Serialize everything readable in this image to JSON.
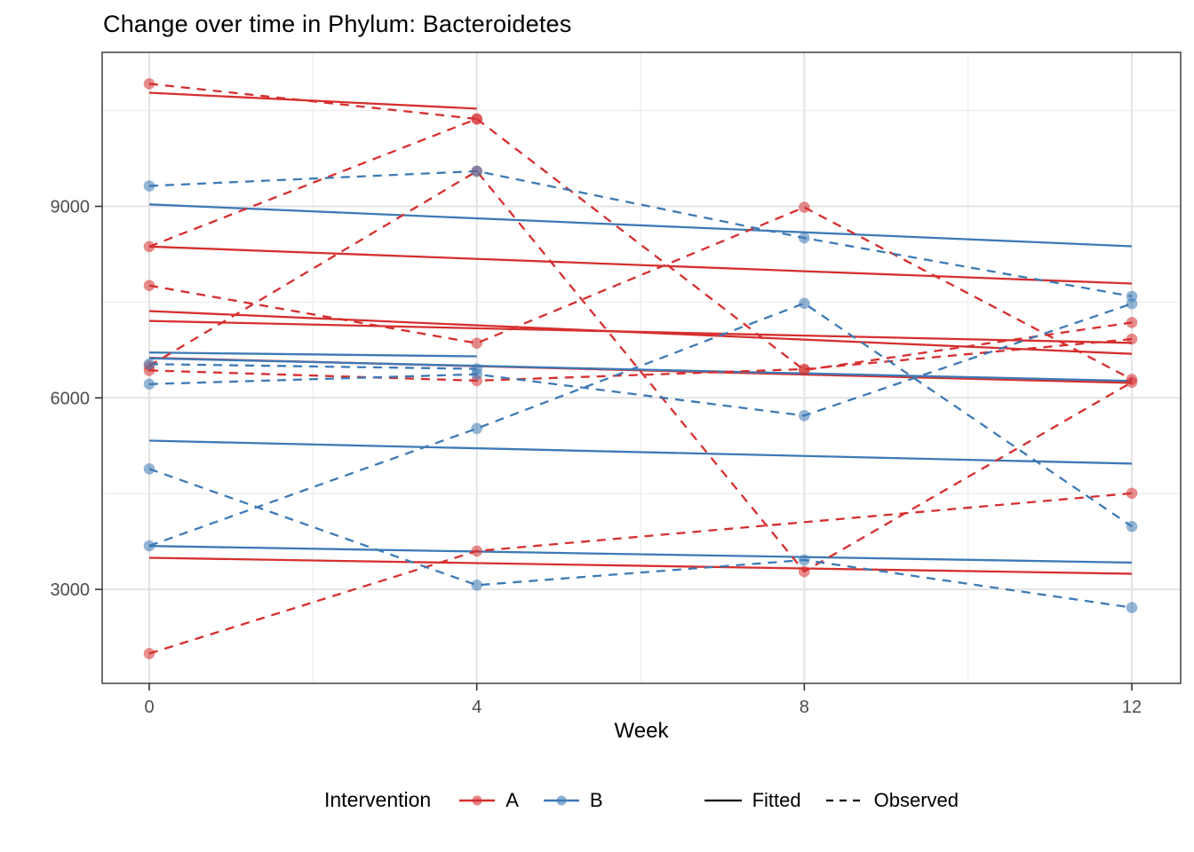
{
  "title": "Change over time in Phylum: Bacteroidetes",
  "axes": {
    "x": {
      "label": "Week",
      "ticks": [
        0,
        4,
        8,
        12
      ],
      "minor": [
        2,
        6,
        10
      ],
      "range": [
        0,
        12
      ]
    },
    "y": {
      "ticks": [
        3000,
        6000,
        9000
      ],
      "minor": [
        4500,
        7500,
        10500
      ],
      "range": [
        1520,
        11410
      ]
    }
  },
  "legend": {
    "title": "Intervention",
    "groups": [
      {
        "label": "A",
        "color": "#d62f2f"
      },
      {
        "label": "B",
        "color": "#3d7ab5"
      }
    ],
    "linetypes": [
      {
        "label": "Fitted",
        "style": "solid"
      },
      {
        "label": "Observed",
        "style": "dashed"
      }
    ]
  },
  "chart_data": {
    "type": "line",
    "title": "Change over time in Phylum: Bacteroidetes",
    "xlabel": "Week",
    "ylabel": "",
    "x_weeks": [
      0,
      4,
      8,
      12
    ],
    "ylim": [
      1520,
      11410
    ],
    "grid": "on",
    "legend_position": "bottom",
    "colors": {
      "A": "#d62f2f",
      "B": "#3d7ab5"
    },
    "series": [
      {
        "id": "A1",
        "group": "A",
        "kind": "fitted",
        "x": [
          0,
          4
        ],
        "y": [
          10780,
          10530
        ]
      },
      {
        "id": "A2",
        "group": "A",
        "kind": "fitted",
        "x": [
          0,
          12
        ],
        "y": [
          8370,
          7790
        ]
      },
      {
        "id": "A3",
        "group": "A",
        "kind": "fitted",
        "x": [
          0,
          12
        ],
        "y": [
          7360,
          6690
        ]
      },
      {
        "id": "A4",
        "group": "A",
        "kind": "fitted",
        "x": [
          0,
          12
        ],
        "y": [
          7205,
          6860
        ]
      },
      {
        "id": "A5",
        "group": "A",
        "kind": "fitted",
        "x": [
          0,
          12
        ],
        "y": [
          6628,
          6235
        ]
      },
      {
        "id": "A6",
        "group": "A",
        "kind": "fitted",
        "x": [
          0,
          12
        ],
        "y": [
          3495,
          3245
        ]
      },
      {
        "id": "B1",
        "group": "B",
        "kind": "fitted",
        "x": [
          0,
          12
        ],
        "y": [
          9030,
          8375
        ]
      },
      {
        "id": "B2",
        "group": "B",
        "kind": "fitted",
        "x": [
          0,
          4
        ],
        "y": [
          6710,
          6650
        ]
      },
      {
        "id": "B3",
        "group": "B",
        "kind": "fitted",
        "x": [
          0,
          12
        ],
        "y": [
          6620,
          6265
        ]
      },
      {
        "id": "B4",
        "group": "B",
        "kind": "fitted",
        "x": [
          0,
          12
        ],
        "y": [
          3680,
          3420
        ]
      },
      {
        "id": "B5",
        "group": "B",
        "kind": "fitted",
        "x": [
          0,
          12
        ],
        "y": [
          5330,
          4970
        ]
      },
      {
        "id": "A1",
        "group": "A",
        "kind": "observed",
        "x": [
          0,
          4
        ],
        "y": [
          10920,
          10370
        ]
      },
      {
        "id": "A2",
        "group": "A",
        "kind": "observed",
        "x": [
          0,
          4,
          8,
          12
        ],
        "y": [
          8370,
          10370,
          6435,
          7180
        ]
      },
      {
        "id": "A3",
        "group": "A",
        "kind": "observed",
        "x": [
          0,
          4,
          8,
          12
        ],
        "y": [
          7760,
          6857,
          8985,
          6290
        ]
      },
      {
        "id": "A4",
        "group": "A",
        "kind": "observed",
        "x": [
          0,
          4,
          8,
          12
        ],
        "y": [
          6500,
          9550,
          3280,
          6245
        ]
      },
      {
        "id": "A5",
        "group": "A",
        "kind": "observed",
        "x": [
          0,
          4,
          8,
          12
        ],
        "y": [
          6430,
          6270,
          6450,
          6920
        ]
      },
      {
        "id": "A6",
        "group": "A",
        "kind": "observed",
        "x": [
          0,
          4,
          12
        ],
        "y": [
          1995,
          3600,
          4505
        ]
      },
      {
        "id": "B1",
        "group": "B",
        "kind": "observed",
        "x": [
          0,
          4,
          8,
          12
        ],
        "y": [
          9320,
          9550,
          8505,
          7590
        ]
      },
      {
        "id": "B2",
        "group": "B",
        "kind": "observed",
        "x": [
          0,
          4
        ],
        "y": [
          6530,
          6455
        ]
      },
      {
        "id": "B3",
        "group": "B",
        "kind": "observed",
        "x": [
          0,
          4,
          8,
          12
        ],
        "y": [
          6215,
          6370,
          5722,
          7475
        ]
      },
      {
        "id": "B4",
        "group": "B",
        "kind": "observed",
        "x": [
          0,
          4,
          8,
          12
        ],
        "y": [
          4888,
          3067,
          3460,
          2715
        ]
      },
      {
        "id": "B5",
        "group": "B",
        "kind": "observed",
        "x": [
          0,
          4,
          8,
          12
        ],
        "y": [
          3682,
          5520,
          7480,
          3985
        ]
      }
    ]
  }
}
